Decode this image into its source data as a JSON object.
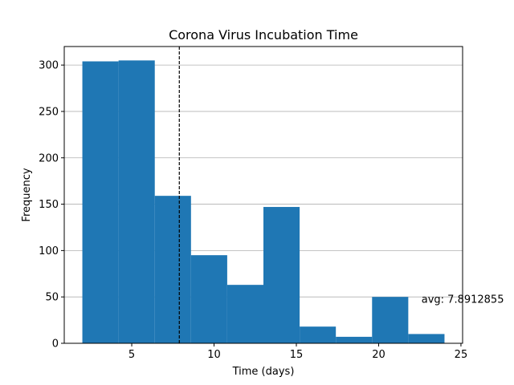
{
  "chart_data": {
    "type": "bar",
    "title": "Corona Virus Incubation Time",
    "xlabel": "Time (days)",
    "ylabel": "Frequency",
    "bin_edges": [
      2.0,
      4.2,
      6.4,
      8.6,
      10.8,
      13.0,
      15.2,
      17.4,
      19.6,
      21.8,
      24.0
    ],
    "values": [
      304,
      305,
      159,
      95,
      63,
      147,
      18,
      7,
      50,
      10
    ],
    "xlim": [
      0.9,
      25.1
    ],
    "ylim": [
      0,
      320
    ],
    "xticks": [
      5,
      10,
      15,
      20,
      25
    ],
    "yticks": [
      0,
      50,
      100,
      150,
      200,
      250,
      300
    ],
    "grid": "y",
    "bar_color": "#1f77b4",
    "mean_line": {
      "x": 7.89,
      "color": "#000000",
      "style": "dashed"
    },
    "annotation": {
      "text": "avg: 7.8912855",
      "x": 22.6,
      "y": 47
    }
  }
}
